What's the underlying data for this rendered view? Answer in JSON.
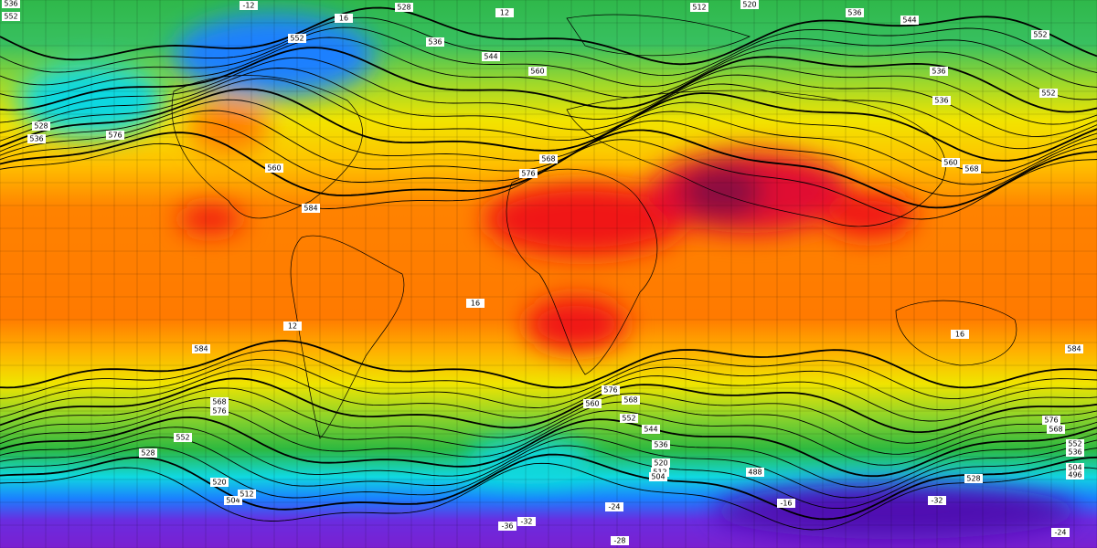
{
  "map": {
    "contour_labels": [
      536,
      552,
      -12,
      16,
      528,
      12,
      512,
      520,
      536,
      544,
      552,
      552,
      536,
      544,
      560,
      528,
      536,
      576,
      560,
      576,
      568,
      584,
      16,
      12,
      584,
      584,
      576,
      568,
      560,
      552,
      544,
      536,
      520,
      512,
      504,
      576,
      568,
      552,
      528,
      520,
      504,
      512,
      -24,
      -28,
      -36,
      -32,
      -16,
      -32,
      576,
      568,
      552,
      536,
      504,
      496,
      -24,
      488,
      528,
      560,
      568,
      536,
      536,
      552,
      16
    ]
  }
}
